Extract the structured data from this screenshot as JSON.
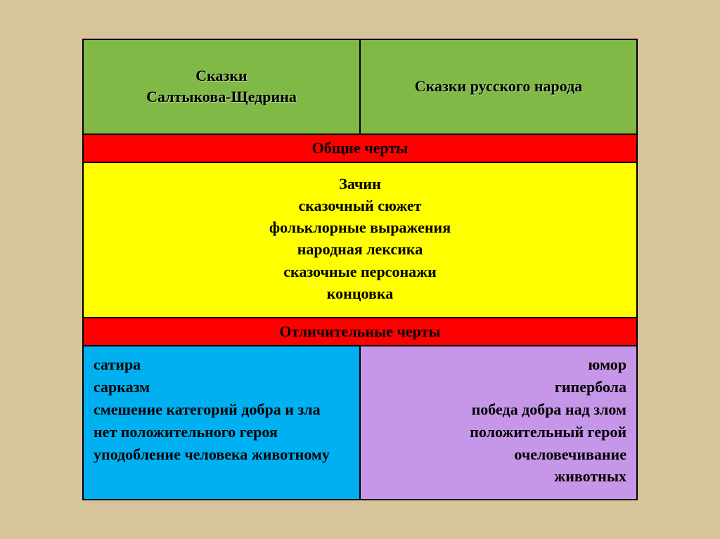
{
  "background_color": "#d7c49a",
  "border_color": "#000000",
  "colors": {
    "green": "#80b945",
    "red": "#ff0000",
    "yellow": "#ffff00",
    "blue": "#00b0f0",
    "purple": "#c696e8"
  },
  "fonts": {
    "family": "Times New Roman",
    "cell_size_pt": 16,
    "weight": "bold"
  },
  "header": {
    "left_line1": "Сказки",
    "left_line2": "Салтыкова-Щедрина",
    "right": "Сказки русского народа"
  },
  "section_common": "Общие черты",
  "common_items": [
    "Зачин",
    "сказочный сюжет",
    "фольклорные выражения",
    "народная лексика",
    "сказочные персонажи",
    "концовка"
  ],
  "section_diff": "Отличительные черты",
  "diff_left": [
    "сатира",
    "сарказм",
    "смешение категорий добра и зла",
    "нет положительного героя",
    "уподобление человека животному"
  ],
  "diff_right": [
    "юмор",
    "гипербола",
    "победа добра над злом",
    "положительный герой",
    "очеловечивание",
    "животных"
  ]
}
